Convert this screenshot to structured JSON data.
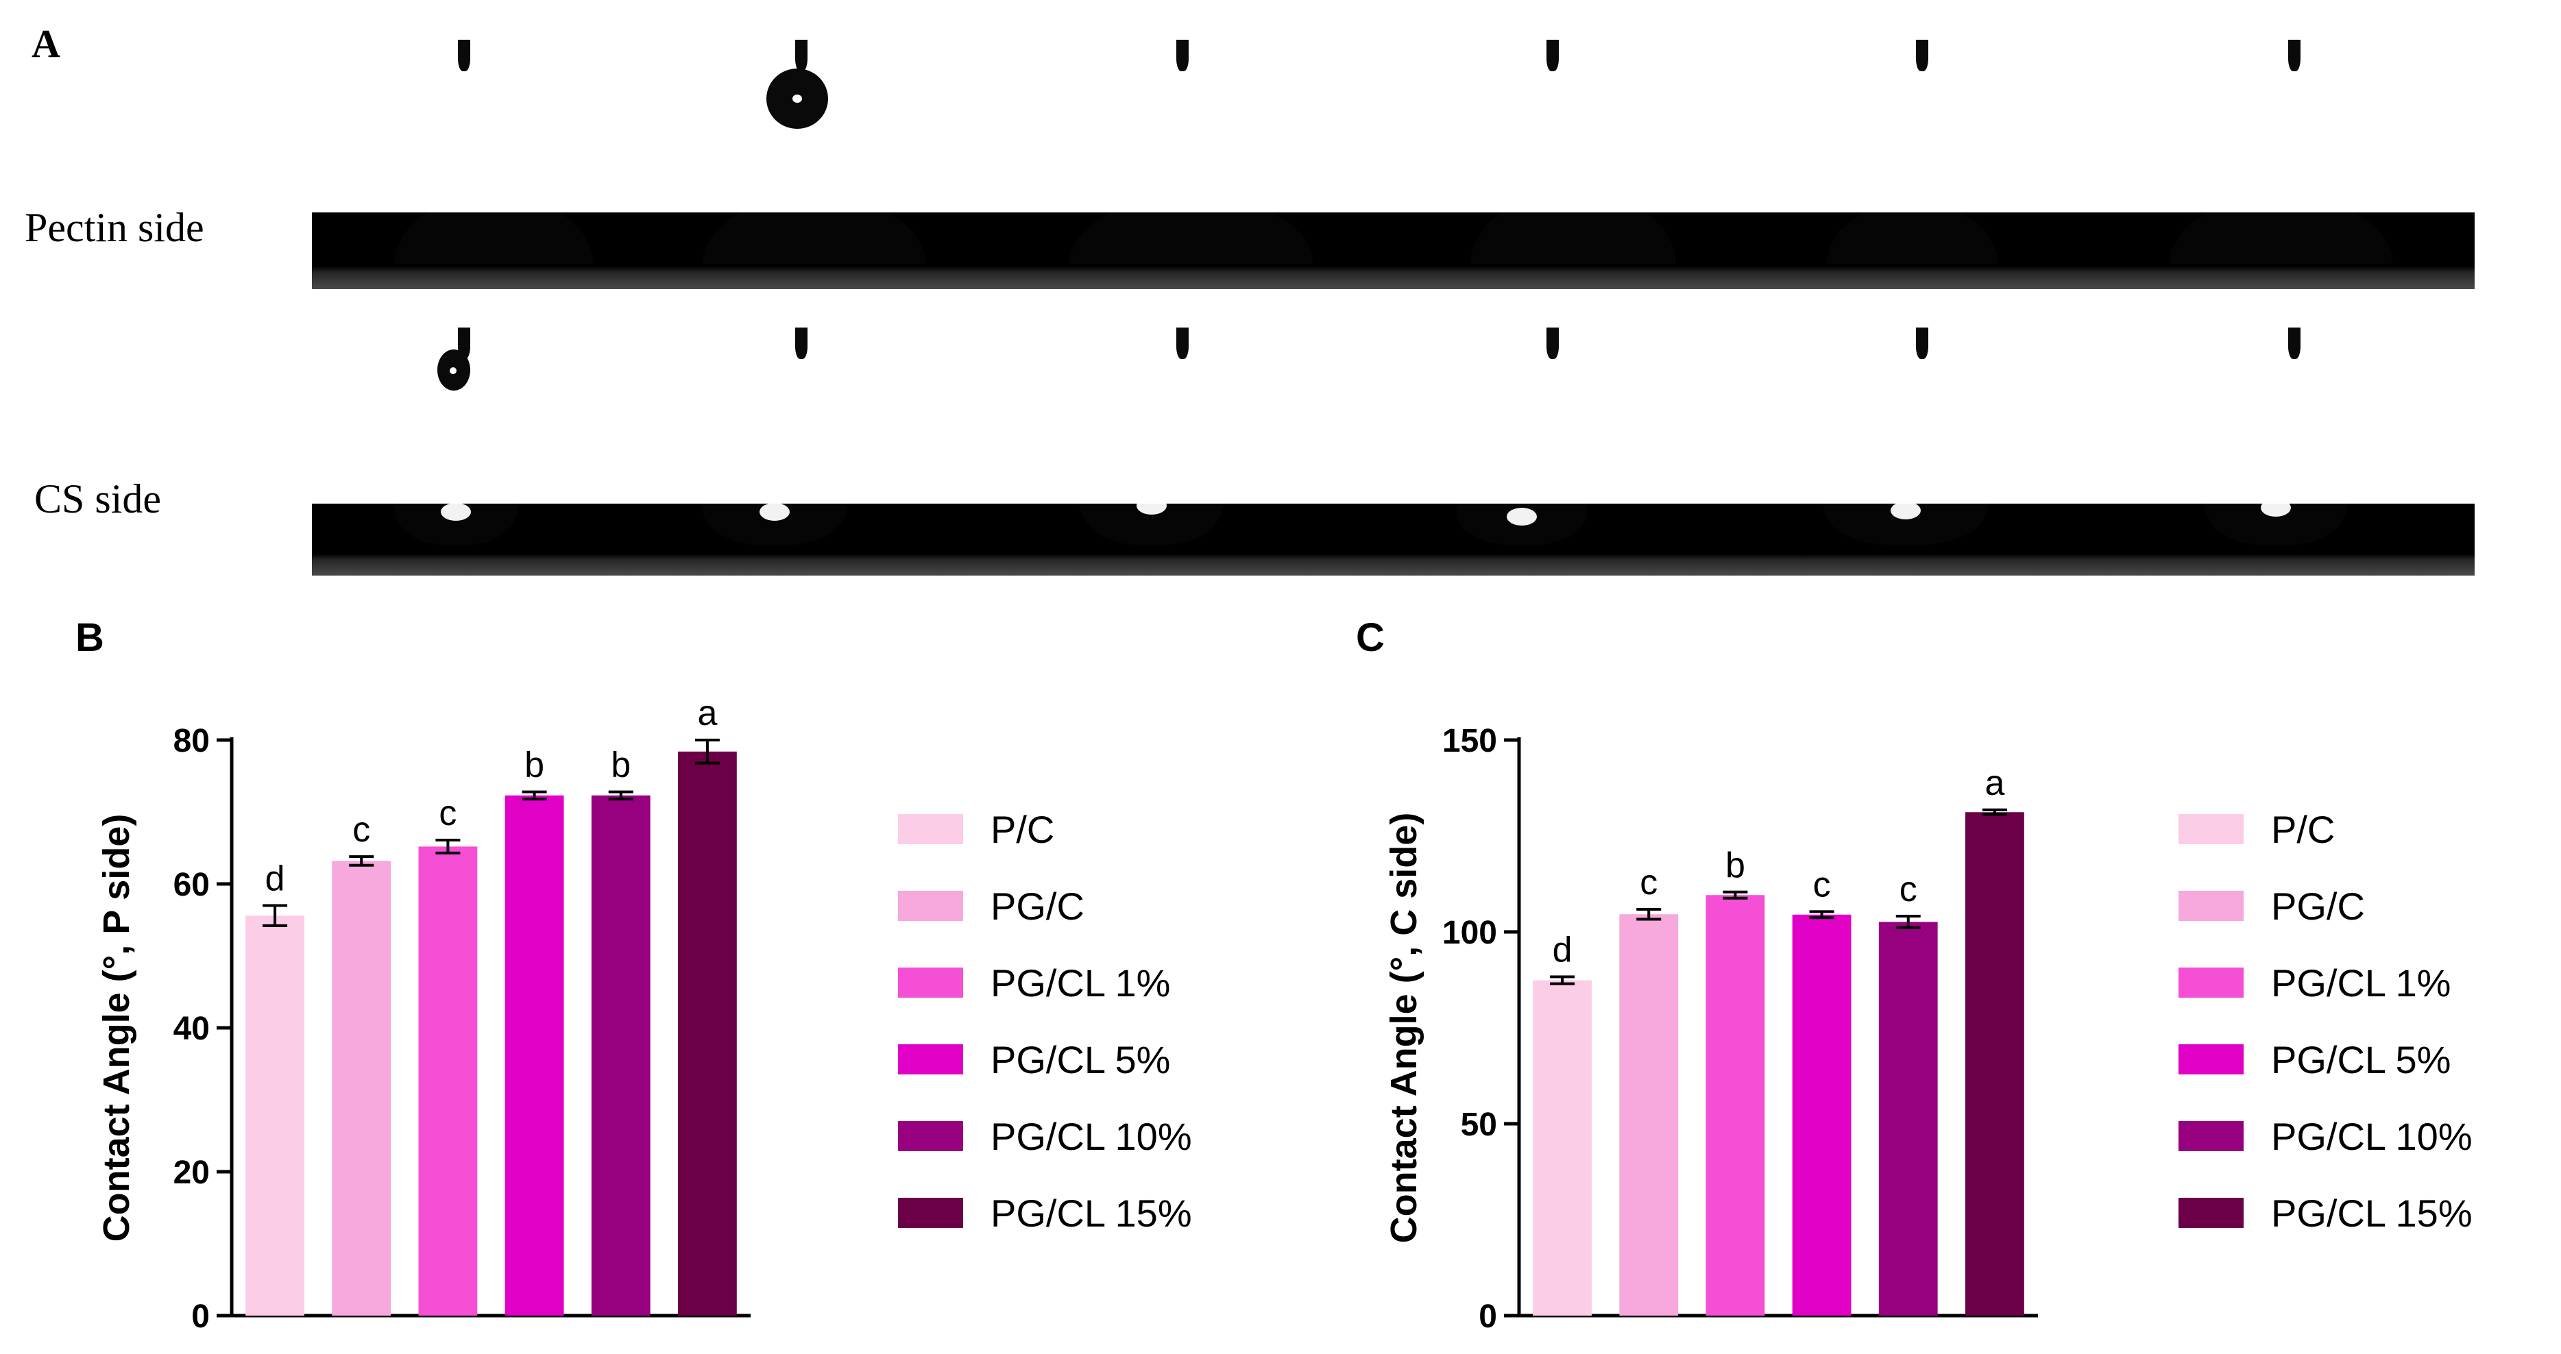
{
  "panel_a": {
    "letter": "A",
    "rows": [
      {
        "label": "Pectin side"
      },
      {
        "label": "CS side"
      }
    ]
  },
  "chart_data": [
    {
      "panel": "B",
      "type": "bar",
      "title": "",
      "xlabel": "",
      "ylabel": "Contact Angle (°,  P side)",
      "ylim": [
        0,
        80
      ],
      "yticks": [
        0,
        20,
        40,
        60,
        80
      ],
      "categories": [
        "P/C",
        "PG/C",
        "PG/CL 1%",
        "PG/CL 5%",
        "PG/CL 10%",
        "PG/CL 15%"
      ],
      "values": [
        55.6,
        63.2,
        65.2,
        72.3,
        72.3,
        78.4
      ],
      "errors": [
        1.4,
        0.6,
        0.9,
        0.5,
        0.5,
        1.6
      ],
      "letters": [
        "d",
        "c",
        "c",
        "b",
        "b",
        "a"
      ],
      "colors": [
        "#fbcde6",
        "#f7a8dc",
        "#f54fd5",
        "#e100c6",
        "#97007f",
        "#6b0046"
      ],
      "legend_position": "right"
    },
    {
      "panel": "C",
      "type": "bar",
      "title": "",
      "xlabel": "",
      "ylabel": "Contact Angle (°,  C side)",
      "ylim": [
        0,
        150
      ],
      "yticks": [
        0,
        50,
        100,
        150
      ],
      "categories": [
        "P/C",
        "PG/C",
        "PG/CL 1%",
        "PG/CL 5%",
        "PG/CL 10%",
        "PG/CL 15%"
      ],
      "values": [
        87.4,
        104.6,
        109.6,
        104.5,
        102.6,
        131.2
      ],
      "errors": [
        0.9,
        1.3,
        0.8,
        0.8,
        1.5,
        0.6
      ],
      "letters": [
        "d",
        "c",
        "b",
        "c",
        "c",
        "a"
      ],
      "colors": [
        "#fbcde6",
        "#f7a8dc",
        "#f54fd5",
        "#e100c6",
        "#97007f",
        "#6b0046"
      ],
      "legend_position": "right"
    }
  ]
}
